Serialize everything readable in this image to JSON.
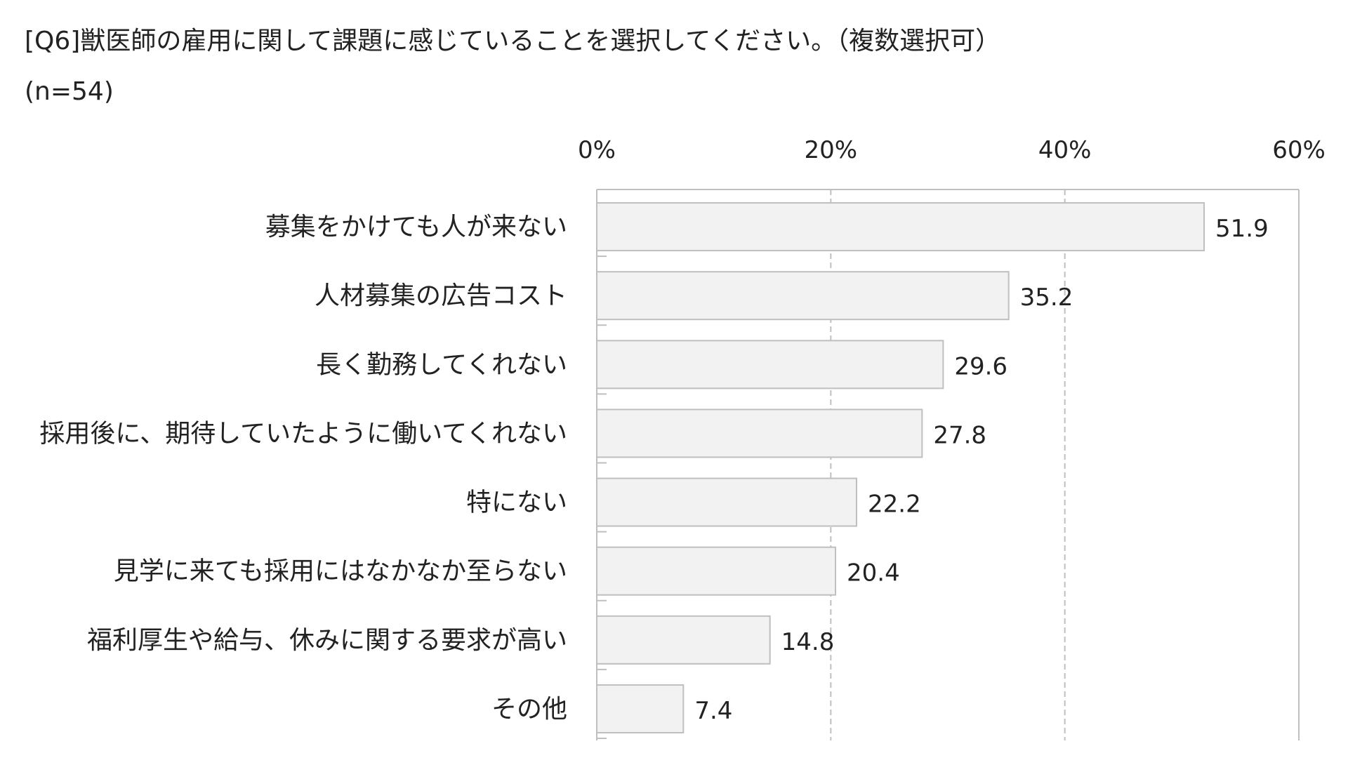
{
  "title": "[Q6]獣医師の雇用に関して課題に感じていることを選択してください。（複数選択可）",
  "subtitle": "(n=54)",
  "chart_data": {
    "type": "bar",
    "orientation": "horizontal",
    "title": "[Q6]獣医師の雇用に関して課題に感じていることを選択してください。（複数選択可）",
    "subtitle": "(n=54)",
    "categories": [
      "募集をかけても人が来ない",
      "人材募集の広告コスト",
      "長く勤務してくれない",
      "採用後に、期待していたように働いてくれない",
      "特にない",
      "見学に来ても採用にはなかなか至らない",
      "福利厚生や給与、休みに関する要求が高い",
      "その他"
    ],
    "values": [
      51.9,
      35.2,
      29.6,
      27.8,
      22.2,
      20.4,
      14.8,
      7.4
    ],
    "value_labels": [
      "51.9",
      "35.2",
      "29.6",
      "27.8",
      "22.2",
      "20.4",
      "14.8",
      "7.4"
    ],
    "xlim": [
      0,
      60
    ],
    "xticks": [
      0,
      20,
      40,
      60
    ],
    "xtick_labels": [
      "0%",
      "20%",
      "40%",
      "60%"
    ],
    "axis_position": "top",
    "grid": "vertical dashed",
    "bar_fill": "#f2f2f2",
    "bar_stroke": "#bfbfbf",
    "grid_color": "#bfbfbf"
  }
}
